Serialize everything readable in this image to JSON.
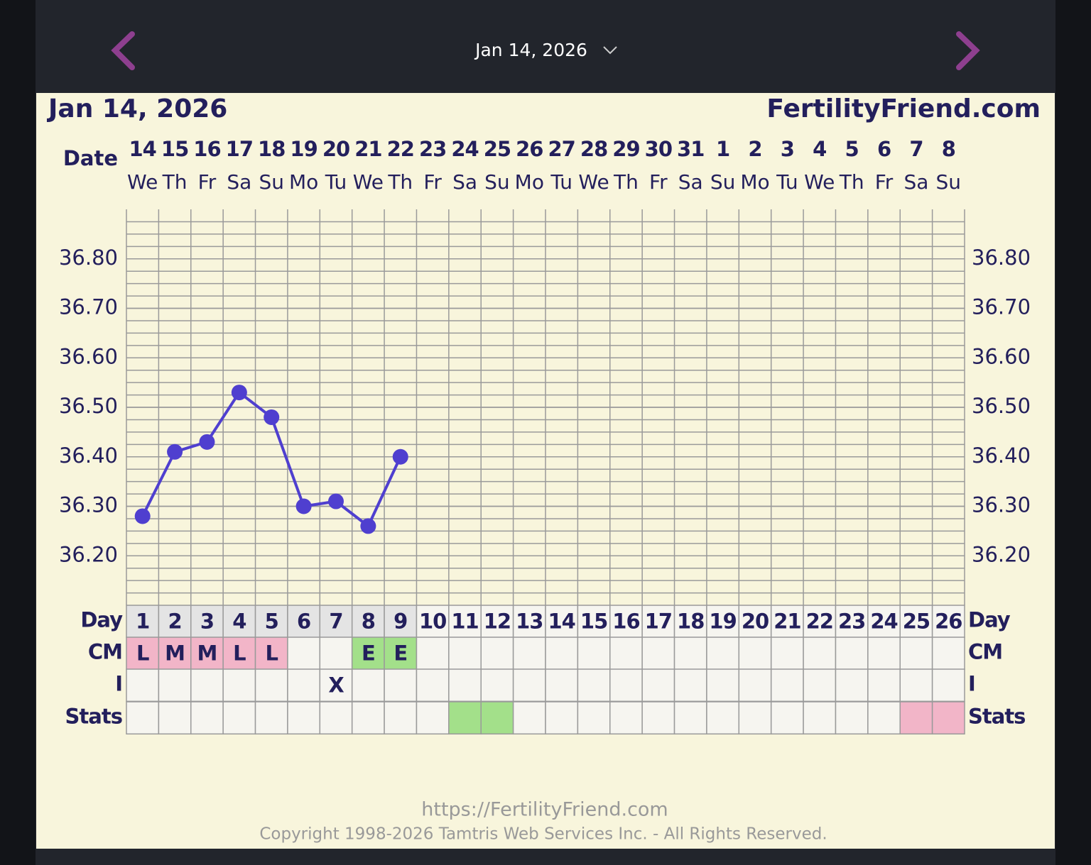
{
  "header": {
    "date_picker": "Jan 14, 2026"
  },
  "chart_data": {
    "type": "line",
    "title": "Jan 14, 2026",
    "brand": "FertilityFriend.com",
    "date_label": "Date",
    "categories": [
      "14",
      "15",
      "16",
      "17",
      "18",
      "19",
      "20",
      "21",
      "22",
      "23",
      "24",
      "25",
      "26",
      "27",
      "28",
      "29",
      "30",
      "31",
      "1",
      "2",
      "3",
      "4",
      "5",
      "6",
      "7",
      "8"
    ],
    "weekdays": [
      "We",
      "Th",
      "Fr",
      "Sa",
      "Su",
      "Mo",
      "Tu",
      "We",
      "Th",
      "Fr",
      "Sa",
      "Su",
      "Mo",
      "Tu",
      "We",
      "Th",
      "Fr",
      "Sa",
      "Su",
      "Mo",
      "Tu",
      "We",
      "Th",
      "Fr",
      "Sa",
      "Su"
    ],
    "values": [
      36.28,
      36.41,
      36.43,
      36.53,
      36.48,
      36.3,
      36.31,
      36.26,
      36.4,
      null,
      null,
      null,
      null,
      null,
      null,
      null,
      null,
      null,
      null,
      null,
      null,
      null,
      null,
      null,
      null,
      null
    ],
    "color": "#4f3fcf",
    "ylim": [
      36.1,
      36.9
    ],
    "yticks": [
      {
        "value": 36.2,
        "label": "36.20"
      },
      {
        "value": 36.3,
        "label": "36.30"
      },
      {
        "value": 36.4,
        "label": "36.40"
      },
      {
        "value": 36.5,
        "label": "36.50"
      },
      {
        "value": 36.6,
        "label": "36.60"
      },
      {
        "value": 36.7,
        "label": "36.70"
      },
      {
        "value": 36.8,
        "label": "36.80"
      }
    ],
    "grid": true,
    "day_label": "Day",
    "days": [
      1,
      2,
      3,
      4,
      5,
      6,
      7,
      8,
      9,
      10,
      11,
      12,
      13,
      14,
      15,
      16,
      17,
      18,
      19,
      20,
      21,
      22,
      23,
      24,
      25,
      26
    ],
    "cm_label": "CM",
    "cm": [
      "L",
      "M",
      "M",
      "L",
      "L",
      null,
      null,
      "E",
      "E",
      null,
      null,
      null,
      null,
      null,
      null,
      null,
      null,
      null,
      null,
      null,
      null,
      null,
      null,
      null,
      null,
      null
    ],
    "cm_colors": {
      "L": "#f2b5c8",
      "M": "#f2b5c8",
      "E": "#a3e08a"
    },
    "i_label": "I",
    "intercourse": [
      null,
      null,
      null,
      null,
      null,
      null,
      "X",
      null,
      null,
      null,
      null,
      null,
      null,
      null,
      null,
      null,
      null,
      null,
      null,
      null,
      null,
      null,
      null,
      null,
      null,
      null
    ],
    "stats_label": "Stats",
    "stats": [
      null,
      null,
      null,
      null,
      null,
      null,
      null,
      null,
      null,
      null,
      "#a3e08a",
      "#a3e08a",
      null,
      null,
      null,
      null,
      null,
      null,
      null,
      null,
      null,
      null,
      null,
      null,
      "#f2b5c8",
      "#f2b5c8"
    ]
  },
  "footer": {
    "url": "https://FertilityFriend.com",
    "copyright": "Copyright 1998-2026 Tamtris Web Services Inc. - All Rights Reserved."
  }
}
